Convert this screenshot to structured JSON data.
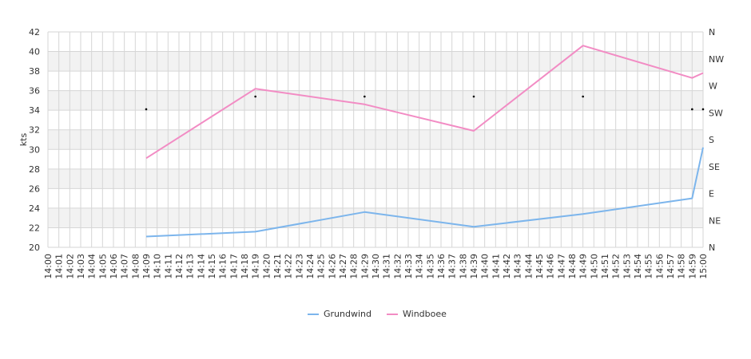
{
  "chart_data": {
    "type": "line",
    "ylabel": "kts",
    "ylim": [
      20,
      42
    ],
    "yticks": [
      20,
      22,
      24,
      26,
      28,
      30,
      32,
      34,
      36,
      38,
      40,
      42
    ],
    "y2_ticks": [
      "N",
      "NE",
      "E",
      "SE",
      "S",
      "SW",
      "W",
      "NW",
      "N"
    ],
    "x_range": [
      "14:00",
      "15:00"
    ],
    "grid": true,
    "legend_position": "bottom",
    "series": [
      {
        "name": "Grundwind",
        "color": "#7cb5ec",
        "points": [
          {
            "x": "14:09",
            "y": 21.1
          },
          {
            "x": "14:19",
            "y": 21.6
          },
          {
            "x": "14:29",
            "y": 23.6
          },
          {
            "x": "14:39",
            "y": 22.1
          },
          {
            "x": "14:49",
            "y": 23.4
          },
          {
            "x": "14:59",
            "y": 25.0
          },
          {
            "x": "15:00",
            "y": 30.2
          }
        ]
      },
      {
        "name": "Windboee",
        "color": "#f28cc4",
        "points": [
          {
            "x": "14:09",
            "y": 29.1
          },
          {
            "x": "14:19",
            "y": 36.2
          },
          {
            "x": "14:29",
            "y": 34.6
          },
          {
            "x": "14:39",
            "y": 31.9
          },
          {
            "x": "14:49",
            "y": 40.6
          },
          {
            "x": "14:59",
            "y": 37.3
          },
          {
            "x": "15:00",
            "y": 37.8
          }
        ]
      }
    ],
    "direction_markers": [
      {
        "x": "14:09",
        "y": 34.1
      },
      {
        "x": "14:19",
        "y": 35.4
      },
      {
        "x": "14:29",
        "y": 35.4
      },
      {
        "x": "14:39",
        "y": 35.4
      },
      {
        "x": "14:49",
        "y": 35.4
      },
      {
        "x": "14:59",
        "y": 34.1
      },
      {
        "x": "15:00",
        "y": 34.1
      }
    ]
  }
}
